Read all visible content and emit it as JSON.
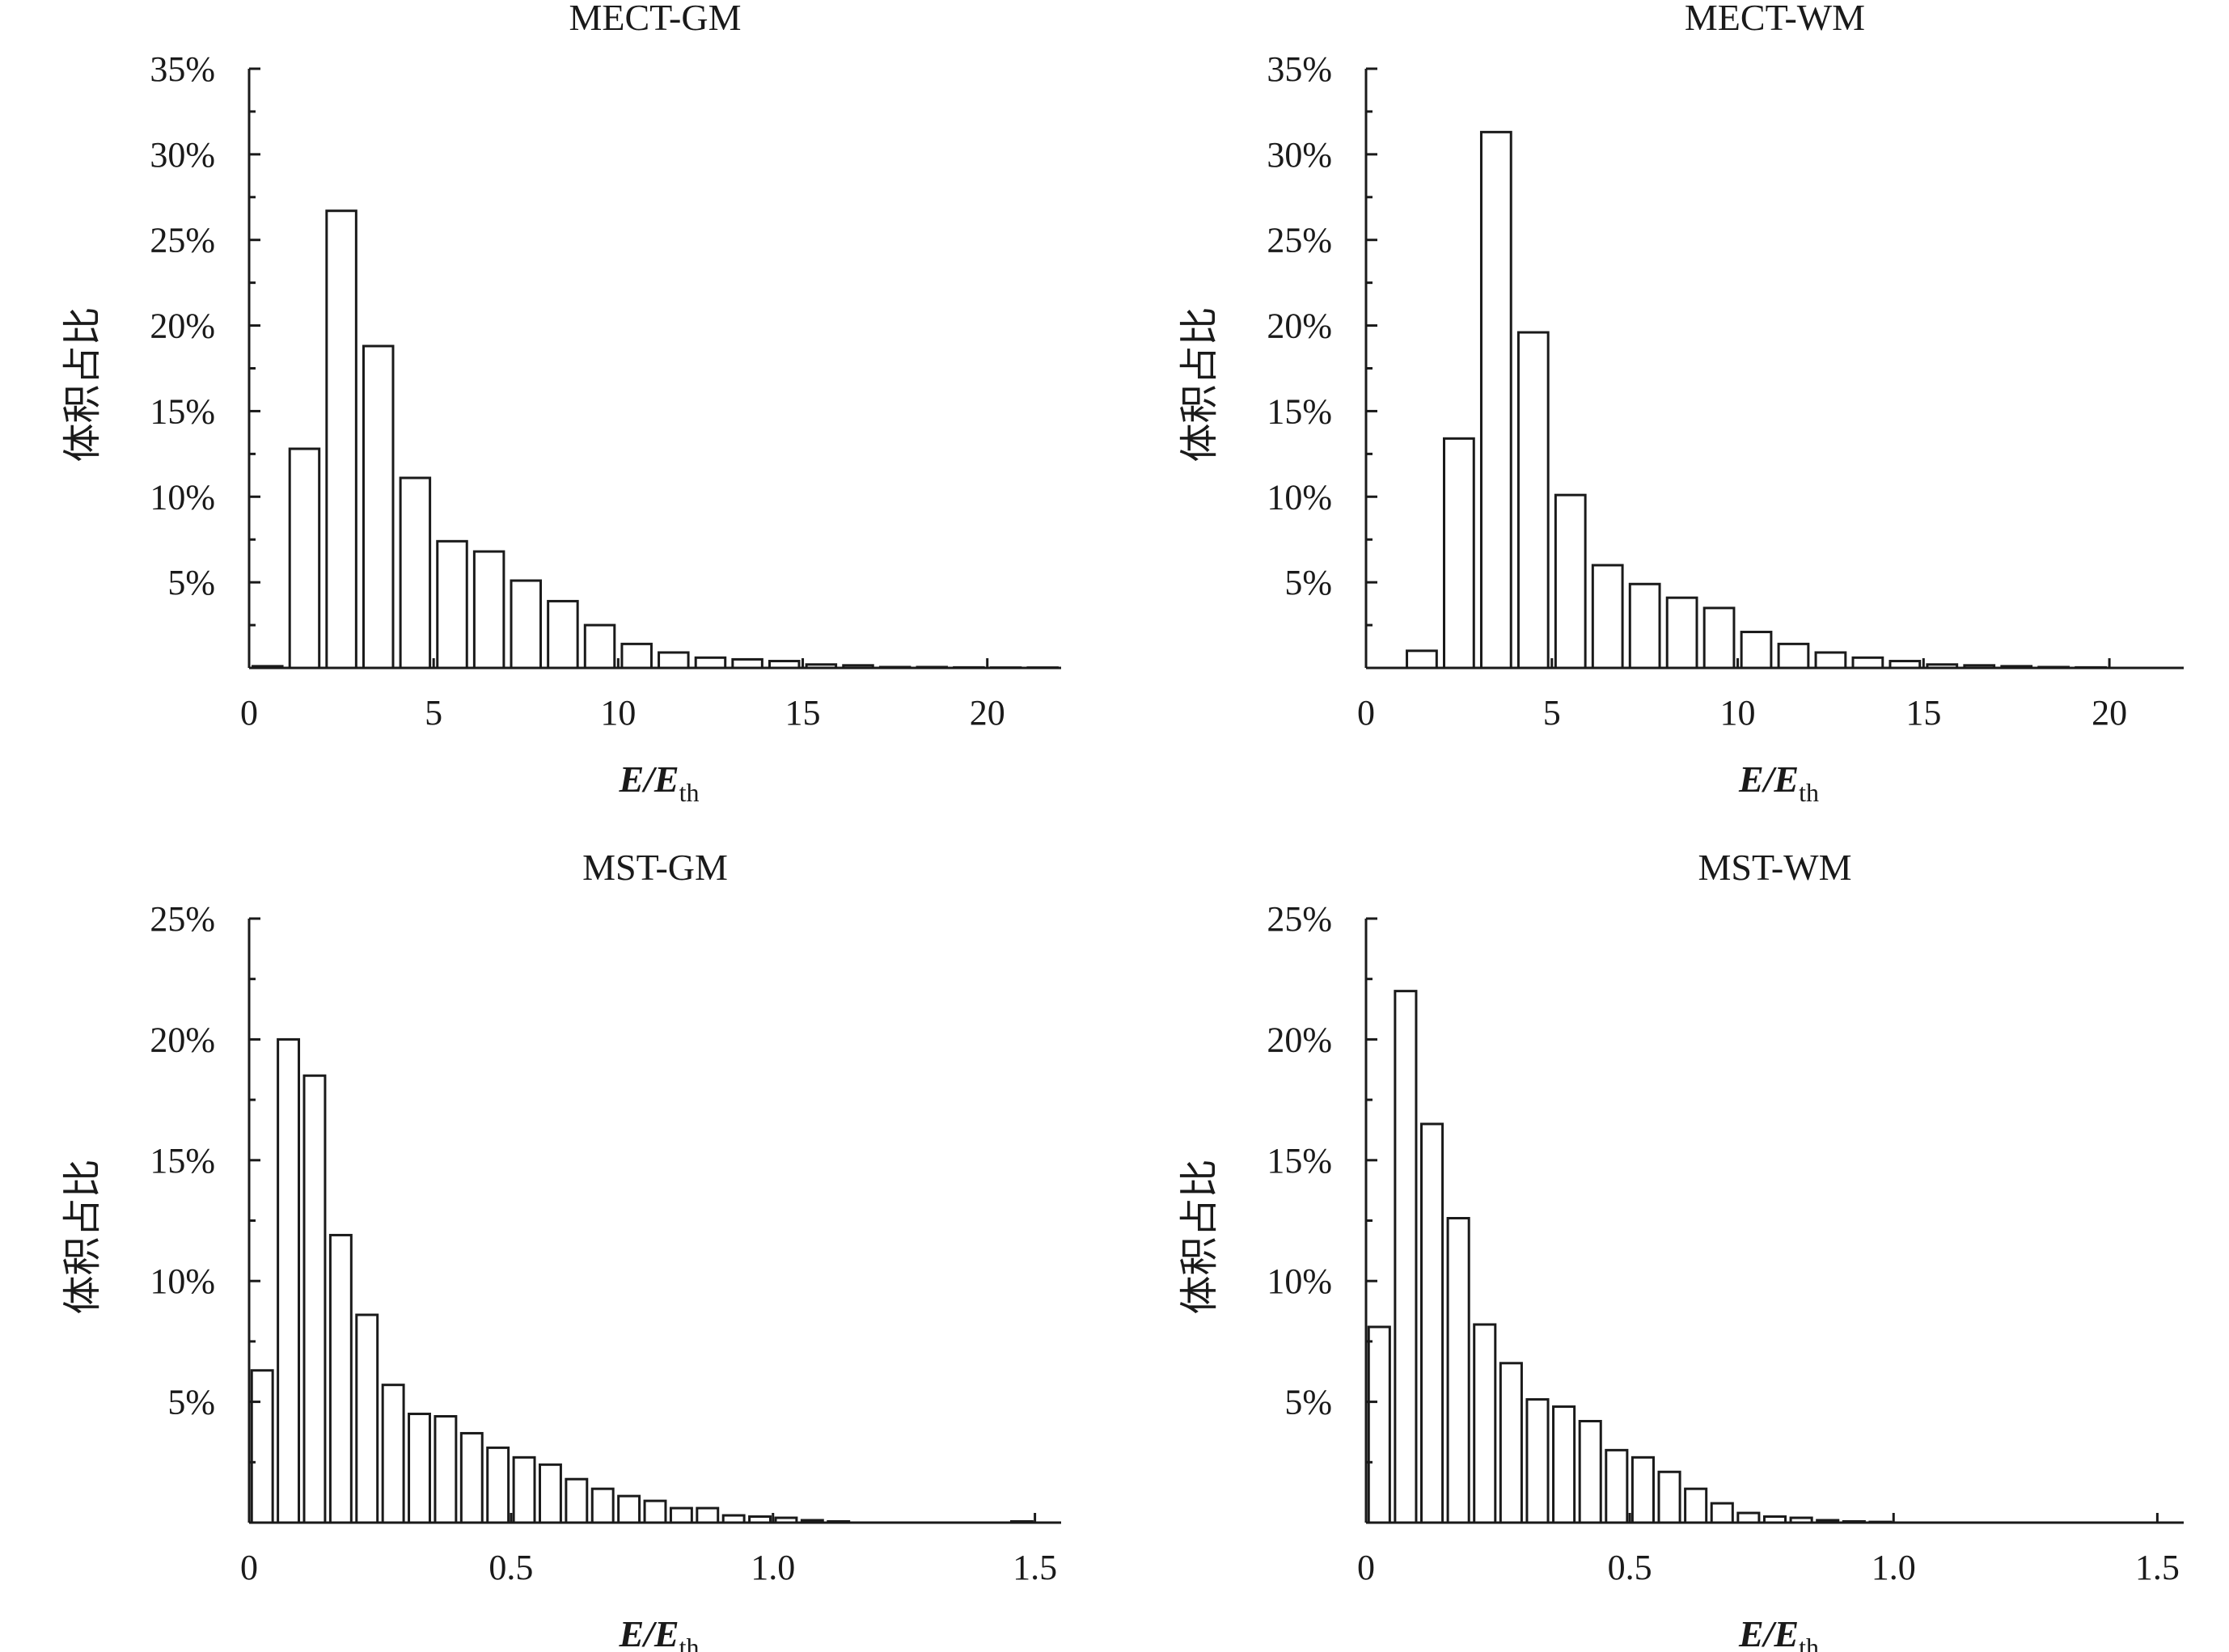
{
  "chart_data": [
    {
      "type": "bar",
      "title": "MECT-GM",
      "xlabel_main": "E/E",
      "xlabel_sub": "th",
      "ylabel": "体积占比",
      "xlim": [
        0,
        22
      ],
      "ylim": [
        0,
        35
      ],
      "xticks": [
        0,
        5,
        10,
        15,
        20
      ],
      "xtick_labels": [
        "0",
        "5",
        "10",
        "15",
        "20"
      ],
      "yticks": [
        5,
        10,
        15,
        20,
        25,
        30,
        35
      ],
      "ytick_labels": [
        "5%",
        "10%",
        "15%",
        "20%",
        "25%",
        "30%",
        "35%"
      ],
      "bin_width": 1,
      "bar_width": 0.8,
      "x": [
        0.5,
        1.5,
        2.5,
        3.5,
        4.5,
        5.5,
        6.5,
        7.5,
        8.5,
        9.5,
        10.5,
        11.5,
        12.5,
        13.5,
        14.5,
        15.5,
        16.5,
        17.5,
        18.5,
        19.5,
        20.5,
        21.5
      ],
      "values": [
        0.1,
        12.8,
        26.7,
        18.8,
        11.1,
        7.4,
        6.8,
        5.1,
        3.9,
        2.5,
        1.4,
        0.9,
        0.6,
        0.5,
        0.4,
        0.2,
        0.15,
        0.05,
        0.05,
        0.03,
        0.02,
        0.02
      ]
    },
    {
      "type": "bar",
      "title": "MECT-WM",
      "xlabel_main": "E/E",
      "xlabel_sub": "th",
      "ylabel": "体积占比",
      "xlim": [
        0,
        22
      ],
      "ylim": [
        0,
        35
      ],
      "xticks": [
        0,
        5,
        10,
        15,
        20
      ],
      "xtick_labels": [
        "0",
        "5",
        "10",
        "15",
        "20"
      ],
      "yticks": [
        5,
        10,
        15,
        20,
        25,
        30,
        35
      ],
      "ytick_labels": [
        "5%",
        "10%",
        "15%",
        "20%",
        "25%",
        "30%",
        "35%"
      ],
      "bin_width": 1,
      "bar_width": 0.8,
      "x": [
        1.5,
        2.5,
        3.5,
        4.5,
        5.5,
        6.5,
        7.5,
        8.5,
        9.5,
        10.5,
        11.5,
        12.5,
        13.5,
        14.5,
        15.5,
        16.5,
        17.5,
        18.5,
        19.5
      ],
      "values": [
        1.0,
        13.4,
        31.3,
        19.6,
        10.1,
        6.0,
        4.9,
        4.1,
        3.5,
        2.1,
        1.4,
        0.9,
        0.6,
        0.4,
        0.2,
        0.15,
        0.1,
        0.05,
        0.03
      ]
    },
    {
      "type": "bar",
      "title": "MST-GM",
      "xlabel_main": "E/E",
      "xlabel_sub": "th",
      "ylabel": "体积占比",
      "xlim": [
        0,
        1.55
      ],
      "ylim": [
        0,
        25
      ],
      "xticks": [
        0,
        0.5,
        1.0,
        1.5
      ],
      "xtick_labels": [
        "0",
        "0.5",
        "1.0",
        "1.5"
      ],
      "yticks": [
        5,
        10,
        15,
        20,
        25
      ],
      "ytick_labels": [
        "5%",
        "10%",
        "15%",
        "20%",
        "25%"
      ],
      "bin_width": 0.05,
      "bar_width": 0.04,
      "x": [
        0.025,
        0.075,
        0.125,
        0.175,
        0.225,
        0.275,
        0.325,
        0.375,
        0.425,
        0.475,
        0.525,
        0.575,
        0.625,
        0.675,
        0.725,
        0.775,
        0.825,
        0.875,
        0.925,
        0.975,
        1.025,
        1.075,
        1.125,
        1.475
      ],
      "values": [
        6.3,
        20.0,
        18.5,
        11.9,
        8.6,
        5.7,
        4.5,
        4.4,
        3.7,
        3.1,
        2.7,
        2.4,
        1.8,
        1.4,
        1.1,
        0.9,
        0.6,
        0.6,
        0.3,
        0.25,
        0.2,
        0.1,
        0.05,
        0.05
      ]
    },
    {
      "type": "bar",
      "title": "MST-WM",
      "xlabel_main": "E/E",
      "xlabel_sub": "th",
      "ylabel": "体积占比",
      "xlim": [
        0,
        1.55
      ],
      "ylim": [
        0,
        25
      ],
      "xticks": [
        0,
        0.5,
        1.0,
        1.5
      ],
      "xtick_labels": [
        "0",
        "0.5",
        "1.0",
        "1.5"
      ],
      "yticks": [
        5,
        10,
        15,
        20,
        25
      ],
      "ytick_labels": [
        "5%",
        "10%",
        "15%",
        "20%",
        "25%"
      ],
      "bin_width": 0.05,
      "bar_width": 0.04,
      "x": [
        0.025,
        0.075,
        0.125,
        0.175,
        0.225,
        0.275,
        0.325,
        0.375,
        0.425,
        0.475,
        0.525,
        0.575,
        0.625,
        0.675,
        0.725,
        0.775,
        0.825,
        0.875,
        0.925,
        0.975
      ],
      "values": [
        8.1,
        22.0,
        16.5,
        12.6,
        8.2,
        6.6,
        5.1,
        4.8,
        4.2,
        3.0,
        2.7,
        2.1,
        1.4,
        0.8,
        0.4,
        0.25,
        0.2,
        0.1,
        0.05,
        0.03
      ]
    }
  ]
}
